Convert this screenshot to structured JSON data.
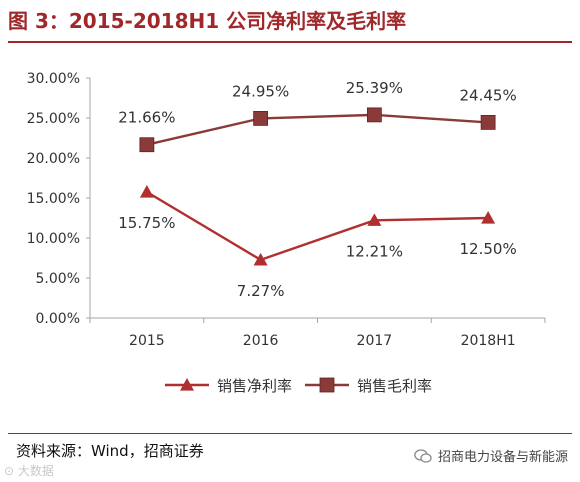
{
  "header": {
    "title": "图 3：2015-2018H1 公司净利率及毛利率"
  },
  "chart_data": {
    "type": "line",
    "categories": [
      "2015",
      "2016",
      "2017",
      "2018H1"
    ],
    "y_ticks": [
      "30.00%",
      "25.00%",
      "20.00%",
      "15.00%",
      "10.00%",
      "5.00%",
      "0.00%"
    ],
    "ylim": [
      0,
      0.3
    ],
    "grid": false,
    "legend_position": "bottom",
    "series": [
      {
        "name": "销售净利率",
        "values": [
          0.1575,
          0.0727,
          0.1221,
          0.125
        ],
        "labels": [
          "15.75%",
          "7.27%",
          "12.21%",
          "12.50%"
        ],
        "marker": "triangle",
        "label_position": [
          "below",
          "below",
          "below",
          "below"
        ],
        "color": "#b0302f"
      },
      {
        "name": "销售毛利率",
        "values": [
          0.2166,
          0.2495,
          0.2539,
          0.2445
        ],
        "labels": [
          "21.66%",
          "24.95%",
          "25.39%",
          "24.45%"
        ],
        "marker": "square",
        "label_position": [
          "above",
          "above",
          "above",
          "above"
        ],
        "color": "#8b3a3a"
      }
    ]
  },
  "footer": {
    "source": "资料来源：Wind，招商证券",
    "brand": "招商电力设备与新能源",
    "brand_icon": "wechat-icon",
    "watermark": "⊙ 大数据"
  },
  "colors": {
    "accent": "#a0282b",
    "axis": "#a6a6a6",
    "text": "#333333"
  }
}
